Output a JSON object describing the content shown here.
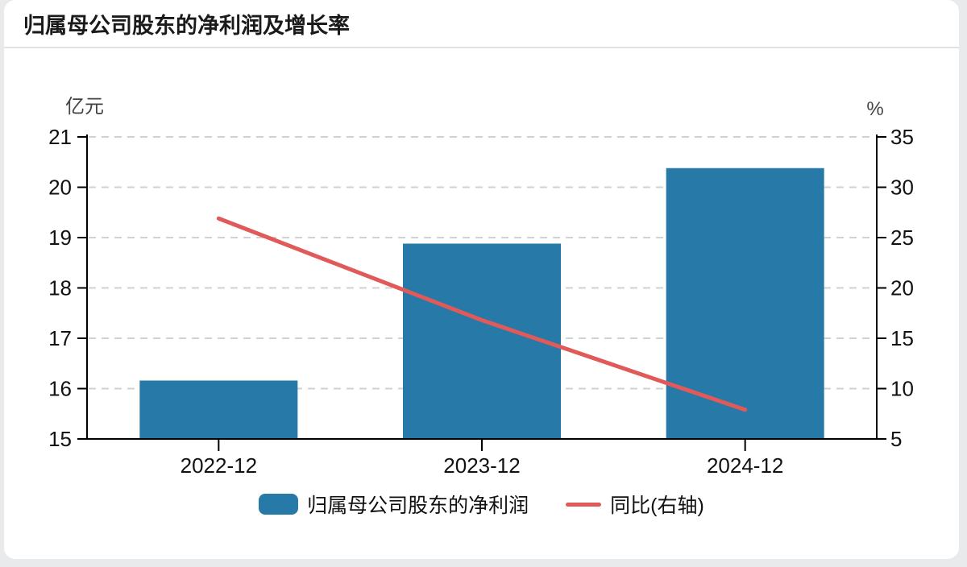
{
  "page": {
    "title": "归属母公司股东的净利润及增长率"
  },
  "chart_data": {
    "type": "bar",
    "combo": "bar+line dual-axis",
    "title": "归属母公司股东的净利润及增长率",
    "categories": [
      "2022-12",
      "2023-12",
      "2024-12"
    ],
    "series": [
      {
        "name": "归属母公司股东的净利润",
        "type": "bar",
        "axis": "left",
        "unit": "亿元",
        "values": [
          16.16,
          18.88,
          20.38
        ],
        "color": "#2779a7"
      },
      {
        "name": "同比(右轴)",
        "type": "line",
        "axis": "right",
        "unit": "%",
        "values": [
          26.9,
          16.8,
          7.9
        ],
        "color": "#e05a5a"
      }
    ],
    "left_axis": {
      "name": "亿元",
      "min": 15,
      "max": 21,
      "ticks": [
        15,
        16,
        17,
        18,
        19,
        20,
        21
      ]
    },
    "right_axis": {
      "name": "%",
      "min": 5,
      "max": 35,
      "ticks": [
        5,
        10,
        15,
        20,
        25,
        30,
        35
      ]
    },
    "grid": "horizontal dashed",
    "legend_position": "bottom"
  },
  "colors": {
    "bar": "#2779a7",
    "line": "#e05a5a",
    "grid": "#d2d2d2",
    "axis": "#000000",
    "tick_label": "#111111",
    "axis_name": "#444444",
    "title": "#1a1a1a",
    "card_bg": "#ffffff",
    "page_bg": "#e9eaec",
    "divider": "#e0e2e5"
  }
}
